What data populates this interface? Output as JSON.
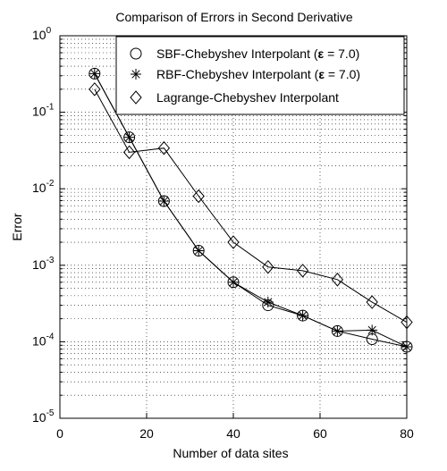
{
  "chart_data": {
    "type": "line",
    "title": "Comparison of Errors in Second Derivative",
    "xlabel": "Number of data sites",
    "ylabel": "Error",
    "xlim": [
      0,
      80
    ],
    "ylim": [
      1e-05,
      1
    ],
    "yscale": "log",
    "grid": "dotted",
    "legend_position": "top-right",
    "x_ticks": [
      0,
      20,
      40,
      60,
      80
    ],
    "y_tick_exponents": [
      -5,
      -4,
      -3,
      -2,
      -1,
      0
    ],
    "series": [
      {
        "name": "SBF-Chebyshev Interpolant (ε = 7.0)",
        "legend_prefix": "SBF-Chebyshev Interpolant (",
        "legend_eps": "ε",
        "legend_suffix": " = 7.0)",
        "marker": "circle",
        "x": [
          8,
          16,
          24,
          32,
          40,
          48,
          56,
          64,
          72,
          80
        ],
        "y": [
          0.32,
          0.047,
          0.0069,
          0.00155,
          0.0006,
          0.0003,
          0.00022,
          0.000138,
          0.000108,
          8.6e-05
        ]
      },
      {
        "name": "RBF-Chebyshev Interpolant (ε = 7.0)",
        "legend_prefix": "RBF-Chebyshev Interpolant (",
        "legend_eps": "ε",
        "legend_suffix": " = 7.0)",
        "marker": "asterisk",
        "x": [
          8,
          16,
          24,
          32,
          40,
          48,
          56,
          64,
          72,
          80
        ],
        "y": [
          0.32,
          0.047,
          0.0069,
          0.00155,
          0.0006,
          0.00033,
          0.00022,
          0.000138,
          0.000142,
          8.6e-05
        ]
      },
      {
        "name": "Lagrange-Chebyshev Interpolant",
        "legend_prefix": "Lagrange-Chebyshev Interpolant",
        "legend_eps": "",
        "legend_suffix": "",
        "marker": "diamond",
        "x": [
          8,
          16,
          24,
          32,
          40,
          48,
          56,
          64,
          72,
          80
        ],
        "y": [
          0.2,
          0.03,
          0.034,
          0.008,
          0.002,
          0.00095,
          0.00085,
          0.00065,
          0.00033,
          0.00018
        ]
      }
    ]
  }
}
